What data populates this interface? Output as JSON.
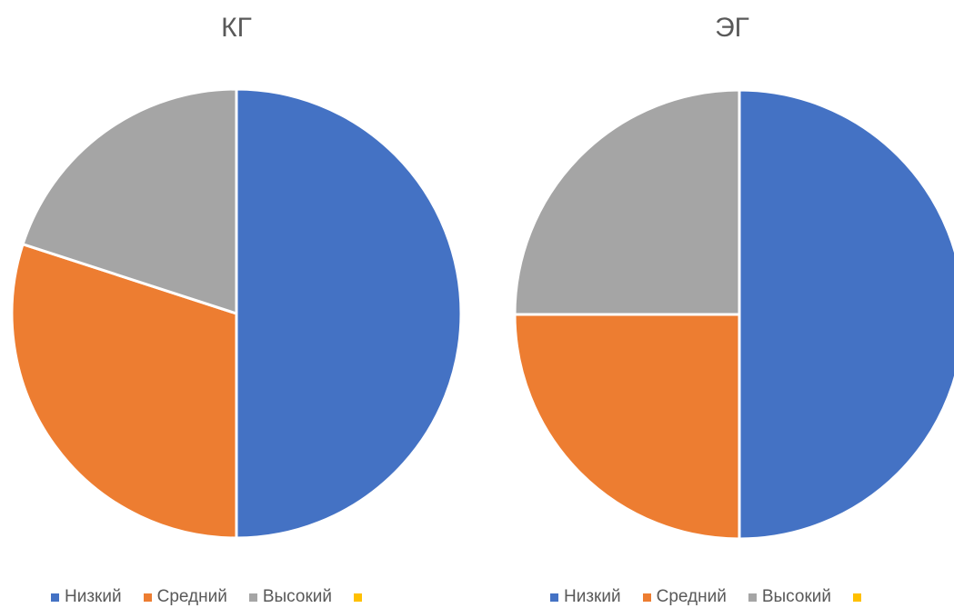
{
  "chart_data": [
    {
      "type": "pie",
      "title": "КГ",
      "legend_position": "bottom",
      "categories": [
        "Низкий",
        "Средний",
        "Высокий",
        ""
      ],
      "values": [
        50,
        30,
        20,
        0
      ],
      "colors": [
        "#4472C4",
        "#ED7D31",
        "#A5A5A5",
        "#FFC000"
      ]
    },
    {
      "type": "pie",
      "title": "ЭГ",
      "legend_position": "bottom",
      "categories": [
        "Низкий",
        "Средний",
        "Высокий",
        ""
      ],
      "values": [
        50,
        25,
        25,
        0
      ],
      "colors": [
        "#4472C4",
        "#ED7D31",
        "#A5A5A5",
        "#FFC000"
      ]
    }
  ]
}
